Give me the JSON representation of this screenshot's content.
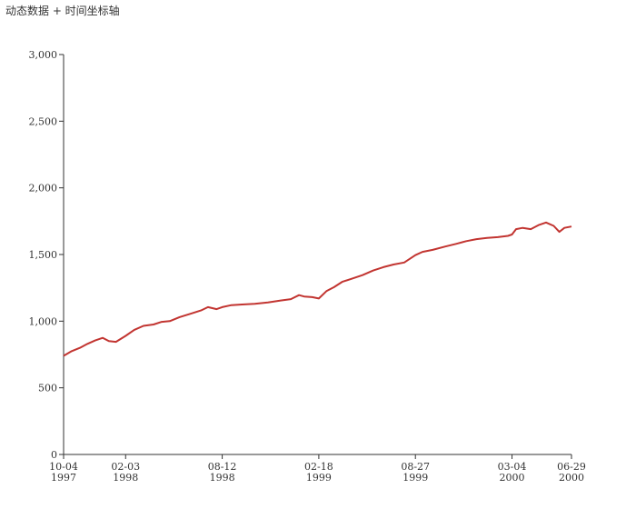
{
  "chart_data": {
    "type": "line",
    "title": "动态数据 + 时间坐标轴",
    "xlabel": "",
    "ylabel": "",
    "ylim": [
      0,
      3000
    ],
    "yticks": [
      0,
      500,
      1000,
      1500,
      2000,
      2500,
      3000
    ],
    "ytick_labels": [
      "0",
      "500",
      "1,000",
      "1,500",
      "2,000",
      "2,500",
      "3,000"
    ],
    "xlim": [
      "1997-10-04",
      "2000-06-29"
    ],
    "xticks": [
      {
        "date": "1997-10-04",
        "line1": "10-04",
        "line2": "1997"
      },
      {
        "date": "1998-02-03",
        "line1": "02-03",
        "line2": "1998"
      },
      {
        "date": "1998-08-12",
        "line1": "08-12",
        "line2": "1998"
      },
      {
        "date": "1999-02-18",
        "line1": "02-18",
        "line2": "1999"
      },
      {
        "date": "1999-08-27",
        "line1": "08-27",
        "line2": "1999"
      },
      {
        "date": "2000-03-04",
        "line1": "03-04",
        "line2": "2000"
      },
      {
        "date": "2000-06-29",
        "line1": "06-29",
        "line2": "2000"
      }
    ],
    "grid": false,
    "series": [
      {
        "color": "#c23531",
        "points": [
          [
            "1997-10-04",
            740
          ],
          [
            "1997-10-20",
            775
          ],
          [
            "1997-11-05",
            800
          ],
          [
            "1997-11-20",
            830
          ],
          [
            "1997-12-05",
            855
          ],
          [
            "1997-12-20",
            875
          ],
          [
            "1998-01-01",
            850
          ],
          [
            "1998-01-15",
            845
          ],
          [
            "1998-02-03",
            890
          ],
          [
            "1998-02-20",
            935
          ],
          [
            "1998-03-10",
            965
          ],
          [
            "1998-03-30",
            975
          ],
          [
            "1998-04-15",
            995
          ],
          [
            "1998-05-01",
            1000
          ],
          [
            "1998-05-20",
            1030
          ],
          [
            "1998-06-10",
            1055
          ],
          [
            "1998-07-01",
            1080
          ],
          [
            "1998-07-15",
            1105
          ],
          [
            "1998-08-01",
            1090
          ],
          [
            "1998-08-12",
            1105
          ],
          [
            "1998-08-30",
            1120
          ],
          [
            "1998-09-20",
            1125
          ],
          [
            "1998-10-15",
            1130
          ],
          [
            "1998-11-10",
            1140
          ],
          [
            "1998-12-05",
            1155
          ],
          [
            "1998-12-25",
            1165
          ],
          [
            "1999-01-10",
            1195
          ],
          [
            "1999-01-20",
            1185
          ],
          [
            "1999-02-05",
            1180
          ],
          [
            "1999-02-18",
            1170
          ],
          [
            "1999-03-05",
            1225
          ],
          [
            "1999-03-20",
            1255
          ],
          [
            "1999-04-05",
            1295
          ],
          [
            "1999-04-25",
            1320
          ],
          [
            "1999-05-15",
            1345
          ],
          [
            "1999-06-05",
            1380
          ],
          [
            "1999-06-25",
            1405
          ],
          [
            "1999-07-15",
            1425
          ],
          [
            "1999-08-05",
            1440
          ],
          [
            "1999-08-27",
            1495
          ],
          [
            "1999-09-10",
            1520
          ],
          [
            "1999-09-30",
            1535
          ],
          [
            "1999-10-25",
            1560
          ],
          [
            "1999-11-15",
            1580
          ],
          [
            "1999-12-05",
            1600
          ],
          [
            "1999-12-25",
            1615
          ],
          [
            "2000-01-15",
            1625
          ],
          [
            "2000-02-05",
            1630
          ],
          [
            "2000-02-25",
            1640
          ],
          [
            "2000-03-04",
            1650
          ],
          [
            "2000-03-12",
            1690
          ],
          [
            "2000-03-25",
            1700
          ],
          [
            "2000-04-10",
            1690
          ],
          [
            "2000-04-25",
            1720
          ],
          [
            "2000-05-10",
            1740
          ],
          [
            "2000-05-25",
            1715
          ],
          [
            "2000-06-05",
            1670
          ],
          [
            "2000-06-15",
            1700
          ],
          [
            "2000-06-29",
            1710
          ]
        ]
      }
    ]
  }
}
